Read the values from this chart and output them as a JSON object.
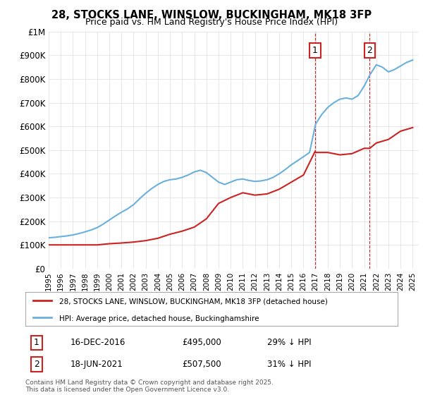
{
  "title": "28, STOCKS LANE, WINSLOW, BUCKINGHAM, MK18 3FP",
  "subtitle": "Price paid vs. HM Land Registry's House Price Index (HPI)",
  "xlabel": "",
  "ylabel": "",
  "ylim": [
    0,
    1000000
  ],
  "yticks": [
    0,
    100000,
    200000,
    300000,
    400000,
    500000,
    600000,
    700000,
    800000,
    900000,
    1000000
  ],
  "ytick_labels": [
    "£0",
    "£100K",
    "£200K",
    "£300K",
    "£400K",
    "£500K",
    "£600K",
    "£700K",
    "£800K",
    "£900K",
    "£1M"
  ],
  "hpi_color": "#6ab0de",
  "price_color": "#cc2222",
  "vline_color": "#cc2222",
  "marker1_year": 2016.96,
  "marker2_year": 2021.46,
  "sale1_label": "1",
  "sale2_label": "2",
  "sale1_date": "16-DEC-2016",
  "sale1_price": "£495,000",
  "sale1_hpi": "29% ↓ HPI",
  "sale2_date": "18-JUN-2021",
  "sale2_price": "£507,500",
  "sale2_hpi": "31% ↓ HPI",
  "legend1": "28, STOCKS LANE, WINSLOW, BUCKINGHAM, MK18 3FP (detached house)",
  "legend2": "HPI: Average price, detached house, Buckinghamshire",
  "footnote": "Contains HM Land Registry data © Crown copyright and database right 2025.\nThis data is licensed under the Open Government Licence v3.0.",
  "background_color": "#ffffff",
  "grid_color": "#dddddd",
  "hpi_years": [
    1995,
    1995.5,
    1996,
    1996.5,
    1997,
    1997.5,
    1998,
    1998.5,
    1999,
    1999.5,
    2000,
    2000.5,
    2001,
    2001.5,
    2002,
    2002.5,
    2003,
    2003.5,
    2004,
    2004.5,
    2005,
    2005.5,
    2006,
    2006.5,
    2007,
    2007.5,
    2008,
    2008.5,
    2009,
    2009.5,
    2010,
    2010.5,
    2011,
    2011.5,
    2012,
    2012.5,
    2013,
    2013.5,
    2014,
    2014.5,
    2015,
    2015.5,
    2016,
    2016.5,
    2017,
    2017.5,
    2018,
    2018.5,
    2019,
    2019.5,
    2020,
    2020.5,
    2021,
    2021.5,
    2022,
    2022.5,
    2023,
    2023.5,
    2024,
    2024.5,
    2025
  ],
  "hpi_values": [
    130000,
    132000,
    135000,
    138000,
    142000,
    148000,
    155000,
    163000,
    173000,
    188000,
    205000,
    222000,
    238000,
    252000,
    270000,
    295000,
    318000,
    338000,
    355000,
    368000,
    375000,
    378000,
    385000,
    395000,
    408000,
    415000,
    405000,
    385000,
    365000,
    355000,
    365000,
    375000,
    378000,
    372000,
    368000,
    370000,
    375000,
    385000,
    400000,
    418000,
    438000,
    455000,
    472000,
    490000,
    610000,
    650000,
    680000,
    700000,
    715000,
    720000,
    715000,
    730000,
    770000,
    820000,
    860000,
    850000,
    830000,
    840000,
    855000,
    870000,
    880000
  ],
  "price_years": [
    1995,
    1996,
    1997,
    1998,
    1999,
    2000,
    2001,
    2002,
    2003,
    2004,
    2005,
    2006,
    2007,
    2008,
    2009,
    2010,
    2011,
    2012,
    2013,
    2014,
    2015,
    2016,
    2016.96,
    2017,
    2018,
    2019,
    2020,
    2021,
    2021.46,
    2022,
    2023,
    2024,
    2025
  ],
  "price_values": [
    100000,
    100000,
    100000,
    100000,
    100000,
    105000,
    108000,
    112000,
    118000,
    128000,
    145000,
    158000,
    175000,
    210000,
    275000,
    300000,
    320000,
    310000,
    315000,
    335000,
    365000,
    395000,
    495000,
    490000,
    490000,
    480000,
    485000,
    507500,
    507500,
    530000,
    545000,
    580000,
    595000
  ]
}
